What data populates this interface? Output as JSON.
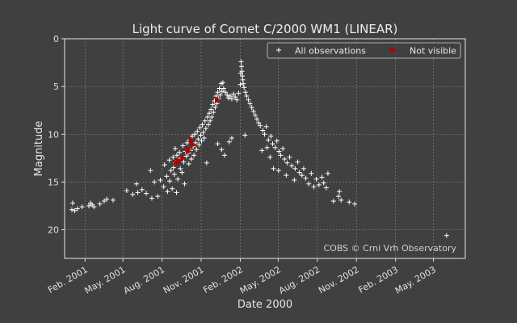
{
  "chart_data": {
    "type": "scatter",
    "title": "Light curve of Comet C/2000 WM1 (LINEAR)",
    "xlabel": "Date 2000",
    "ylabel": "Magnitude",
    "credit": "COBS © Crni Vrh Observatory",
    "y_inverted": true,
    "ylim": [
      0,
      23
    ],
    "xlim": [
      "2000-12-15",
      "2003-07-15"
    ],
    "grid": true,
    "legend_position": "top-right",
    "y_ticks": [
      0,
      5,
      10,
      15,
      20
    ],
    "x_ticks": [
      {
        "date": "2001-02-01",
        "label": "Feb. 2001"
      },
      {
        "date": "2001-05-01",
        "label": "May. 2001"
      },
      {
        "date": "2001-08-01",
        "label": "Aug. 2001"
      },
      {
        "date": "2001-11-01",
        "label": "Nov. 2001"
      },
      {
        "date": "2002-02-01",
        "label": "Feb. 2002"
      },
      {
        "date": "2002-05-01",
        "label": "May. 2002"
      },
      {
        "date": "2002-08-01",
        "label": "Aug. 2002"
      },
      {
        "date": "2002-11-01",
        "label": "Nov. 2002"
      },
      {
        "date": "2003-02-01",
        "label": "Feb. 2003"
      },
      {
        "date": "2003-05-01",
        "label": "May. 2003"
      }
    ],
    "series": [
      {
        "name": "All observations",
        "marker": "plus",
        "color": "#ffffff",
        "points": [
          [
            "2001-01-01",
            17.9
          ],
          [
            "2001-01-03",
            17.2
          ],
          [
            "2001-01-08",
            18.0
          ],
          [
            "2001-01-14",
            17.8
          ],
          [
            "2001-01-25",
            17.6
          ],
          [
            "2001-02-10",
            17.5
          ],
          [
            "2001-02-14",
            17.2
          ],
          [
            "2001-02-18",
            17.4
          ],
          [
            "2001-02-22",
            17.6
          ],
          [
            "2001-03-08",
            17.3
          ],
          [
            "2001-03-18",
            17.0
          ],
          [
            "2001-03-24",
            16.8
          ],
          [
            "2001-04-08",
            16.9
          ],
          [
            "2001-05-10",
            15.9
          ],
          [
            "2001-05-24",
            16.3
          ],
          [
            "2001-06-02",
            15.2
          ],
          [
            "2001-06-05",
            16.1
          ],
          [
            "2001-06-15",
            15.8
          ],
          [
            "2001-06-25",
            16.2
          ],
          [
            "2001-07-05",
            13.8
          ],
          [
            "2001-07-08",
            16.7
          ],
          [
            "2001-07-14",
            15.0
          ],
          [
            "2001-07-22",
            16.5
          ],
          [
            "2001-07-28",
            14.8
          ],
          [
            "2001-08-05",
            15.5
          ],
          [
            "2001-08-07",
            13.2
          ],
          [
            "2001-08-12",
            14.4
          ],
          [
            "2001-08-14",
            16.0
          ],
          [
            "2001-08-18",
            12.7
          ],
          [
            "2001-08-19",
            14.9
          ],
          [
            "2001-08-22",
            13.8
          ],
          [
            "2001-08-25",
            15.7
          ],
          [
            "2001-08-27",
            12.4
          ],
          [
            "2001-08-28",
            13.5
          ],
          [
            "2001-08-30",
            14.2
          ],
          [
            "2001-09-01",
            11.5
          ],
          [
            "2001-09-02",
            13.0
          ],
          [
            "2001-09-04",
            16.1
          ],
          [
            "2001-09-05",
            12.2
          ],
          [
            "2001-09-07",
            14.7
          ],
          [
            "2001-09-09",
            12.8
          ],
          [
            "2001-09-11",
            11.9
          ],
          [
            "2001-09-13",
            13.6
          ],
          [
            "2001-09-15",
            12.5
          ],
          [
            "2001-09-17",
            14.0
          ],
          [
            "2001-09-19",
            11.2
          ],
          [
            "2001-09-21",
            12.9
          ],
          [
            "2001-09-23",
            15.2
          ],
          [
            "2001-09-25",
            11.8
          ],
          [
            "2001-09-27",
            12.3
          ],
          [
            "2001-09-29",
            10.9
          ],
          [
            "2001-10-01",
            12.0
          ],
          [
            "2001-10-03",
            13.1
          ],
          [
            "2001-10-05",
            10.6
          ],
          [
            "2001-10-07",
            11.7
          ],
          [
            "2001-10-09",
            12.6
          ],
          [
            "2001-10-11",
            10.2
          ],
          [
            "2001-10-13",
            11.3
          ],
          [
            "2001-10-15",
            12.2
          ],
          [
            "2001-10-17",
            10.0
          ],
          [
            "2001-10-19",
            10.9
          ],
          [
            "2001-10-21",
            11.6
          ],
          [
            "2001-10-23",
            9.7
          ],
          [
            "2001-10-25",
            10.5
          ],
          [
            "2001-10-27",
            11.1
          ],
          [
            "2001-10-29",
            9.3
          ],
          [
            "2001-10-31",
            10.1
          ],
          [
            "2001-11-02",
            10.7
          ],
          [
            "2001-11-04",
            9.0
          ],
          [
            "2001-11-06",
            9.8
          ],
          [
            "2001-11-08",
            10.4
          ],
          [
            "2001-11-10",
            8.6
          ],
          [
            "2001-11-12",
            9.4
          ],
          [
            "2001-11-14",
            13.0
          ],
          [
            "2001-11-16",
            8.2
          ],
          [
            "2001-11-18",
            9.0
          ],
          [
            "2001-11-20",
            7.8
          ],
          [
            "2001-11-22",
            8.6
          ],
          [
            "2001-11-24",
            7.4
          ],
          [
            "2001-11-26",
            8.2
          ],
          [
            "2001-11-28",
            6.9
          ],
          [
            "2001-11-30",
            7.7
          ],
          [
            "2001-12-02",
            6.5
          ],
          [
            "2001-12-04",
            7.2
          ],
          [
            "2001-12-06",
            6.0
          ],
          [
            "2001-12-08",
            6.8
          ],
          [
            "2001-12-10",
            5.6
          ],
          [
            "2001-12-10",
            11.0
          ],
          [
            "2001-12-12",
            6.3
          ],
          [
            "2001-12-14",
            5.2
          ],
          [
            "2001-12-16",
            5.9
          ],
          [
            "2001-12-18",
            4.7
          ],
          [
            "2001-12-19",
            11.6
          ],
          [
            "2001-12-20",
            5.5
          ],
          [
            "2001-12-22",
            4.6
          ],
          [
            "2001-12-24",
            5.2
          ],
          [
            "2001-12-26",
            12.2
          ],
          [
            "2001-12-28",
            5.6
          ],
          [
            "2002-01-01",
            5.9
          ],
          [
            "2002-01-04",
            6.2
          ],
          [
            "2002-01-06",
            10.8
          ],
          [
            "2002-01-08",
            6.0
          ],
          [
            "2002-01-12",
            10.4
          ],
          [
            "2002-01-12",
            6.3
          ],
          [
            "2002-01-16",
            5.8
          ],
          [
            "2002-01-20",
            6.1
          ],
          [
            "2002-01-24",
            6.4
          ],
          [
            "2002-01-28",
            5.7
          ],
          [
            "2002-02-01",
            4.8
          ],
          [
            "2002-02-02",
            3.6
          ],
          [
            "2002-02-03",
            2.4
          ],
          [
            "2002-02-04",
            2.9
          ],
          [
            "2002-02-05",
            3.4
          ],
          [
            "2002-02-06",
            3.9
          ],
          [
            "2002-02-07",
            4.3
          ],
          [
            "2002-02-08",
            4.7
          ],
          [
            "2002-02-10",
            5.1
          ],
          [
            "2002-02-12",
            10.1
          ],
          [
            "2002-02-13",
            5.6
          ],
          [
            "2002-02-16",
            6.0
          ],
          [
            "2002-02-20",
            6.4
          ],
          [
            "2002-02-24",
            6.8
          ],
          [
            "2002-02-28",
            7.2
          ],
          [
            "2002-03-04",
            7.6
          ],
          [
            "2002-03-08",
            8.0
          ],
          [
            "2002-03-12",
            8.4
          ],
          [
            "2002-03-16",
            8.8
          ],
          [
            "2002-03-20",
            9.1
          ],
          [
            "2002-03-24",
            11.7
          ],
          [
            "2002-03-26",
            9.6
          ],
          [
            "2002-03-30",
            10.0
          ],
          [
            "2002-04-03",
            9.2
          ],
          [
            "2002-04-05",
            11.4
          ],
          [
            "2002-04-08",
            10.6
          ],
          [
            "2002-04-12",
            12.4
          ],
          [
            "2002-04-14",
            10.2
          ],
          [
            "2002-04-18",
            11.0
          ],
          [
            "2002-04-20",
            13.6
          ],
          [
            "2002-04-24",
            11.4
          ],
          [
            "2002-04-28",
            10.7
          ],
          [
            "2002-05-02",
            13.8
          ],
          [
            "2002-05-03",
            11.8
          ],
          [
            "2002-05-07",
            12.2
          ],
          [
            "2002-05-12",
            11.5
          ],
          [
            "2002-05-16",
            12.6
          ],
          [
            "2002-05-20",
            14.3
          ],
          [
            "2002-05-22",
            13.0
          ],
          [
            "2002-05-28",
            12.4
          ],
          [
            "2002-06-02",
            13.3
          ],
          [
            "2002-06-08",
            14.8
          ],
          [
            "2002-06-10",
            13.6
          ],
          [
            "2002-06-16",
            12.9
          ],
          [
            "2002-06-20",
            14.0
          ],
          [
            "2002-06-26",
            14.3
          ],
          [
            "2002-06-30",
            13.6
          ],
          [
            "2002-07-05",
            14.6
          ],
          [
            "2002-07-12",
            15.2
          ],
          [
            "2002-07-18",
            14.1
          ],
          [
            "2002-07-24",
            15.5
          ],
          [
            "2002-07-30",
            14.7
          ],
          [
            "2002-08-05",
            15.3
          ],
          [
            "2002-08-12",
            14.5
          ],
          [
            "2002-08-16",
            15.1
          ],
          [
            "2002-08-22",
            15.6
          ],
          [
            "2002-08-26",
            14.1
          ],
          [
            "2002-09-08",
            17.0
          ],
          [
            "2002-09-20",
            16.5
          ],
          [
            "2002-09-22",
            16.0
          ],
          [
            "2002-09-26",
            16.9
          ],
          [
            "2002-10-15",
            17.1
          ],
          [
            "2002-10-28",
            17.3
          ],
          [
            "2003-06-01",
            20.6
          ]
        ]
      },
      {
        "name": "Not visible",
        "marker": "triangle-right",
        "color": "#b30000",
        "points": [
          [
            "2001-09-04",
            13.0
          ],
          [
            "2001-09-10",
            12.8
          ],
          [
            "2001-09-20",
            12.5
          ],
          [
            "2001-10-01",
            11.6
          ],
          [
            "2001-10-03",
            11.8
          ],
          [
            "2001-10-10",
            10.6
          ],
          [
            "2001-10-14",
            11.1
          ],
          [
            "2001-12-10",
            6.4
          ]
        ]
      }
    ]
  }
}
